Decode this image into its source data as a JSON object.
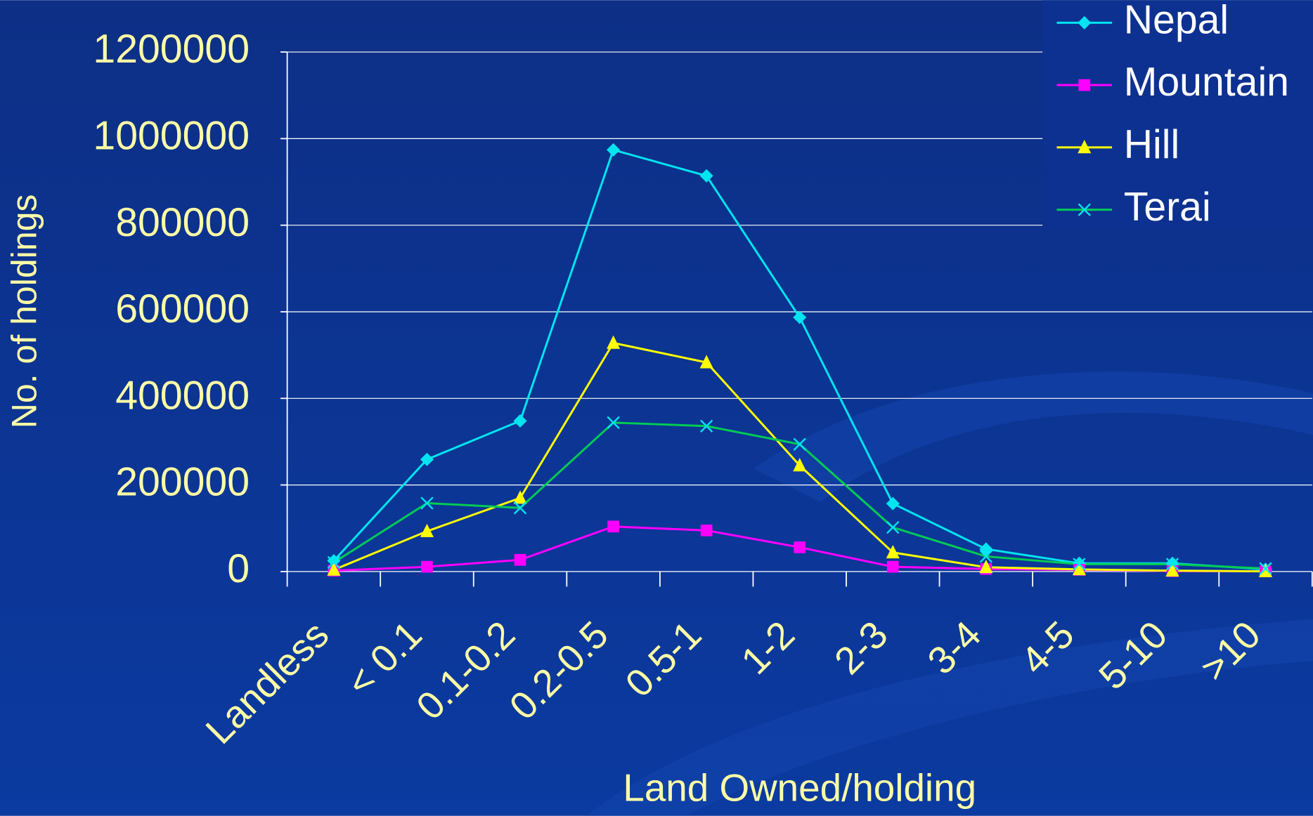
{
  "chart_data": {
    "type": "line",
    "x_label": "Land Owned/holding",
    "y_label": "No. of holdings",
    "categories": [
      "Landless",
      "< 0.1",
      "0.1-0.2",
      "0.2-0.5",
      "0.5-1",
      "1-2",
      "2-3",
      "3-4",
      "4-5",
      "5-10",
      ">10"
    ],
    "series": [
      {
        "name": "Nepal",
        "color": "#00e5f0",
        "marker": "diamond",
        "values": [
          25000,
          259000,
          348000,
          974000,
          914000,
          587000,
          157000,
          52000,
          19000,
          19000,
          5000
        ]
      },
      {
        "name": "Mountain",
        "color": "#ff00ff",
        "marker": "square",
        "values": [
          2000,
          11000,
          27000,
          104000,
          95000,
          56000,
          11000,
          6000,
          4000,
          1000,
          500
        ]
      },
      {
        "name": "Hill",
        "color": "#ffff00",
        "marker": "triangle",
        "values": [
          4000,
          93000,
          170000,
          528000,
          483000,
          245000,
          44000,
          10000,
          5000,
          2000,
          500
        ]
      },
      {
        "name": "Terai",
        "color": "#00cc55",
        "marker": "x",
        "values": [
          21000,
          158000,
          147000,
          344000,
          336000,
          294000,
          102000,
          35000,
          17000,
          17000,
          7000
        ]
      }
    ],
    "ylim": [
      0,
      1200000
    ],
    "yticks": [
      0,
      200000,
      400000,
      600000,
      800000,
      1000000,
      1200000
    ],
    "grid": true,
    "legend": "top-right"
  }
}
